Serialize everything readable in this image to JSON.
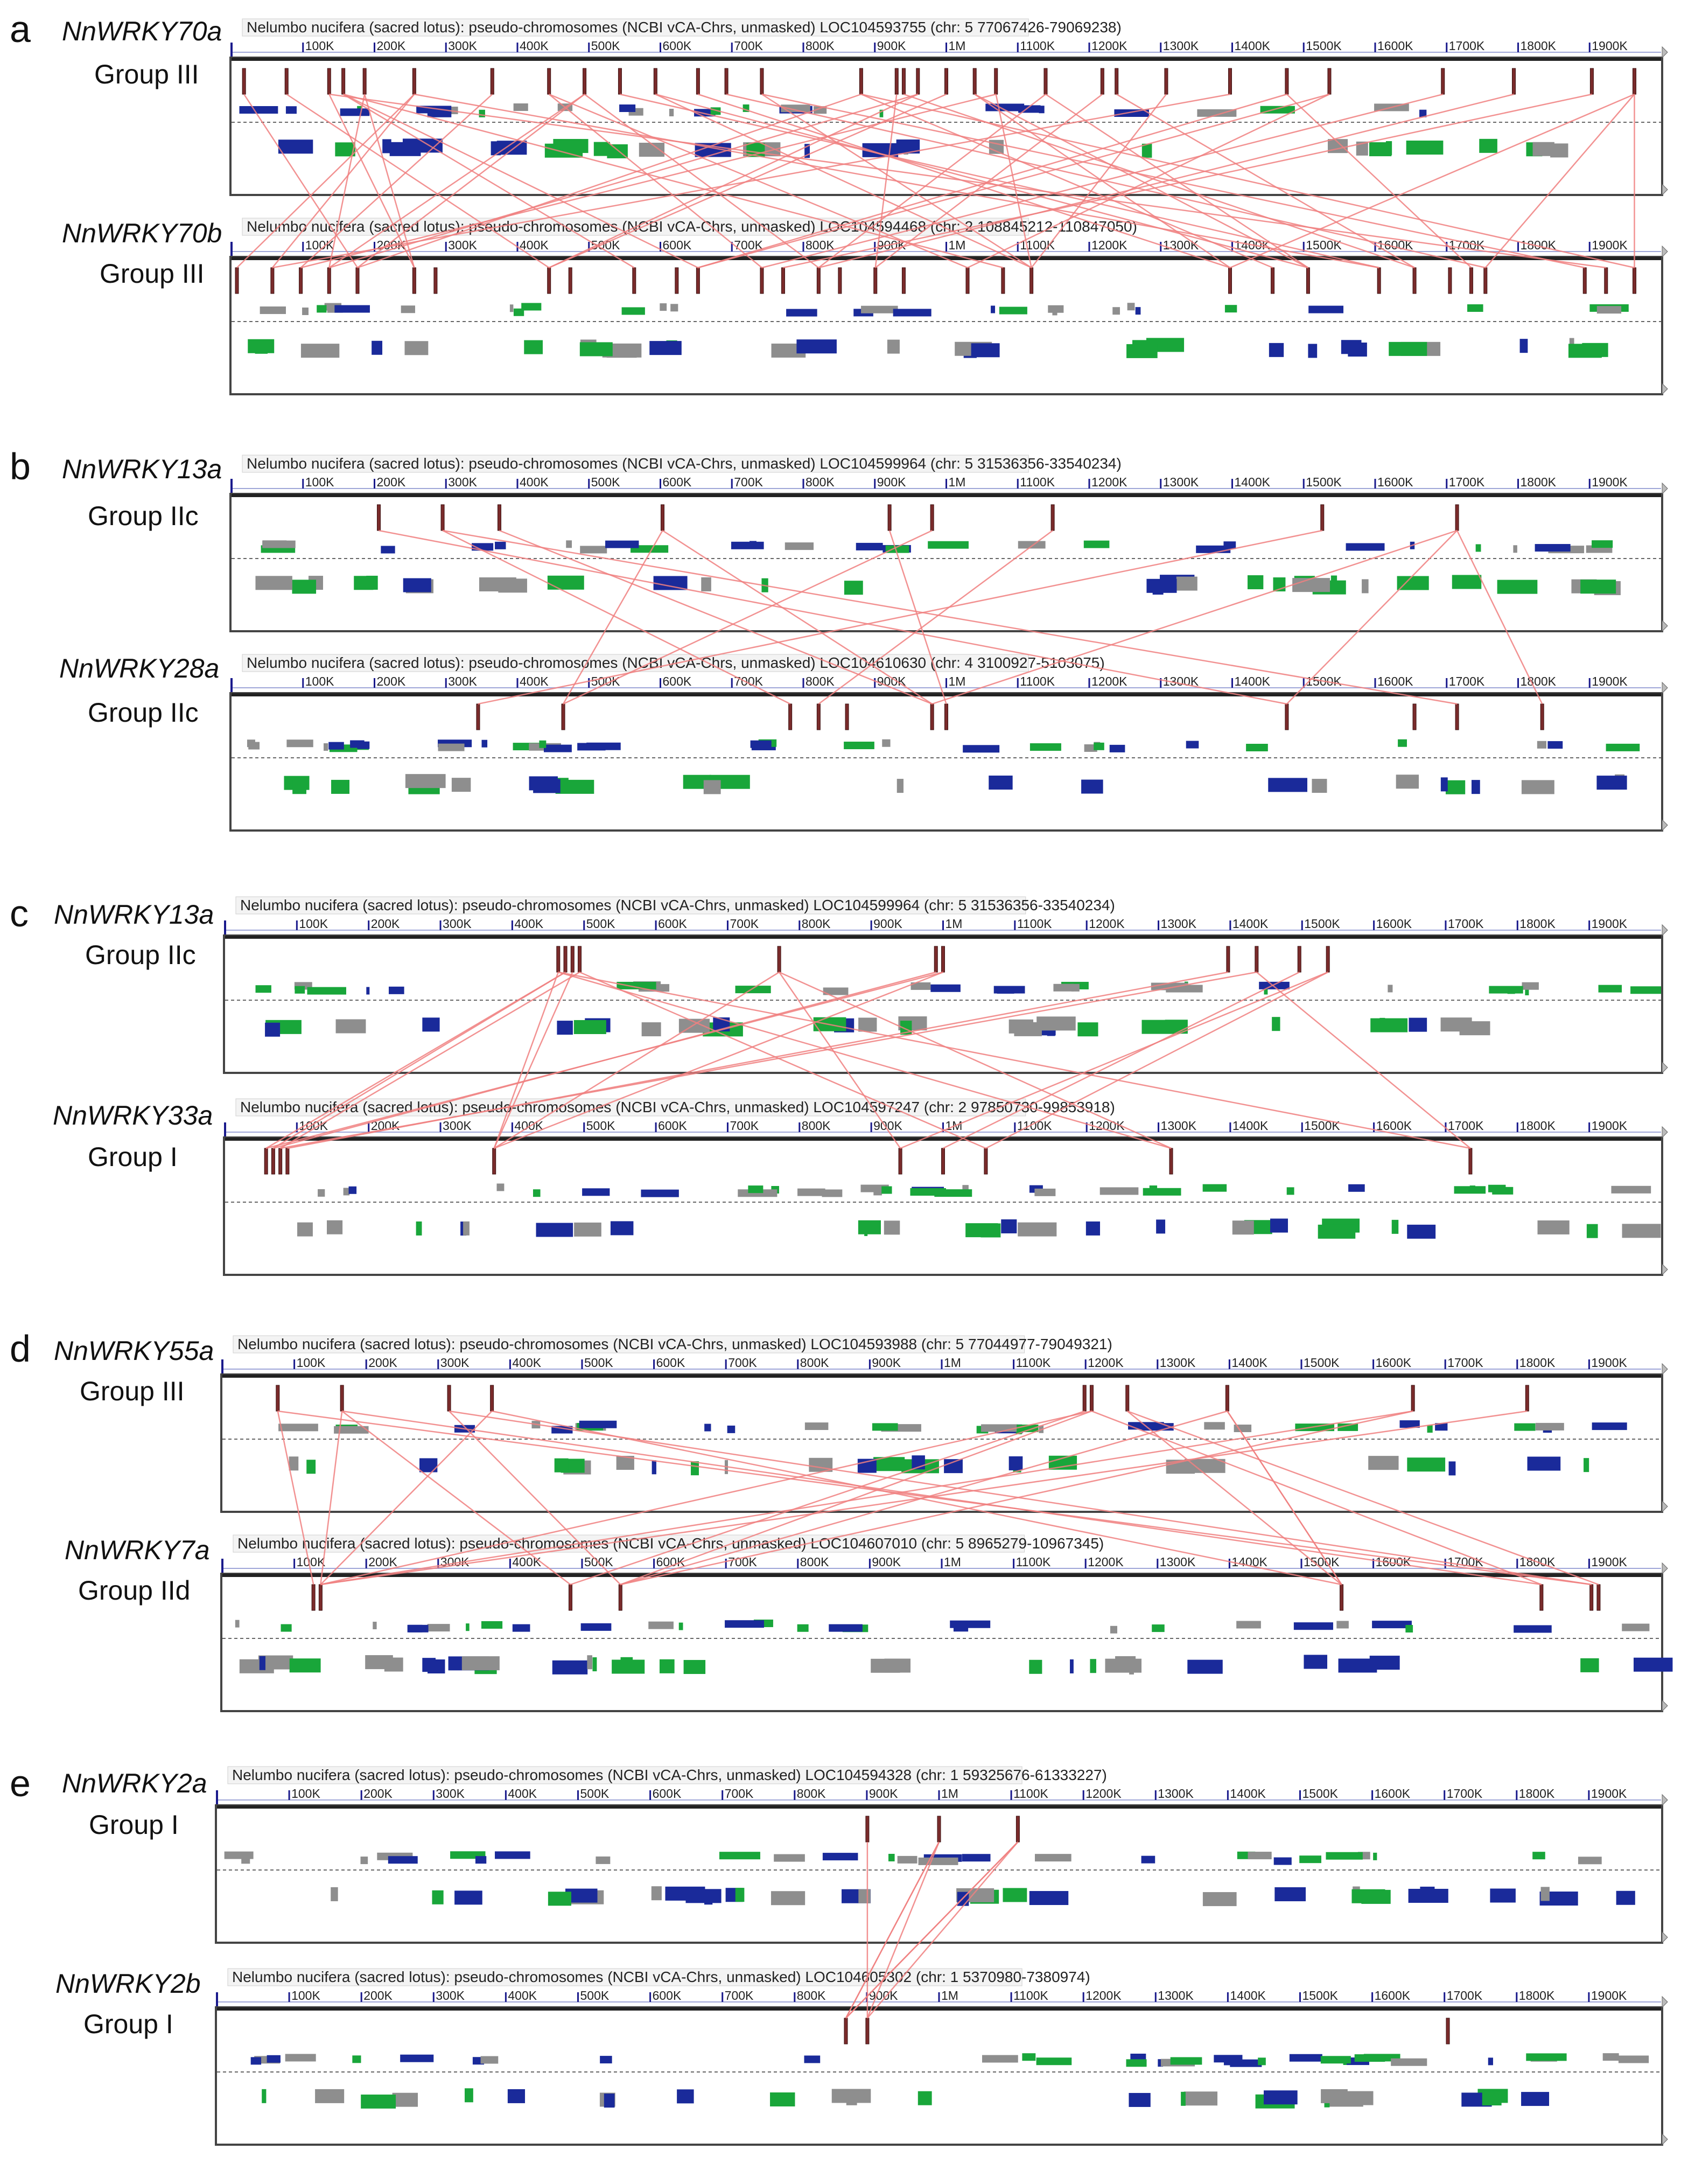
{
  "colors": {
    "link": "#f08080",
    "hit": "#7a2b2b",
    "gene_gray": "#8e8e8e",
    "gene_blue": "#1a2a9a",
    "gene_green": "#19a63a",
    "ruler": "#1a1a8c",
    "frame": "#444444"
  },
  "tick_labels": [
    "100K",
    "200K",
    "300K",
    "400K",
    "500K",
    "600K",
    "700K",
    "800K",
    "900K",
    "1M",
    "1100K",
    "1200K",
    "1300K",
    "1400K",
    "1500K",
    "1600K",
    "1700K",
    "1800K",
    "1900K"
  ],
  "panels": [
    {
      "label": "a",
      "tracks": [
        {
          "gene": "NnWRKY70a",
          "group": "Group III",
          "title": "Nelumbo nucifera (sacred lotus): pseudo-chromosomes (NCBI vCA-Chrs, unmasked) LOC104593755 (chr: 5 77067426-79069238)"
        },
        {
          "gene": "NnWRKY70b",
          "group": "Group III",
          "title": "Nelumbo nucifera (sacred lotus): pseudo-chromosomes (NCBI vCA-Chrs, unmasked) LOC104594468 (chr: 2 108845212-110847050)"
        }
      ]
    },
    {
      "label": "b",
      "tracks": [
        {
          "gene": "NnWRKY13a",
          "group": "Group IIc",
          "title": "Nelumbo nucifera (sacred lotus): pseudo-chromosomes (NCBI vCA-Chrs, unmasked) LOC104599964 (chr: 5 31536356-33540234)"
        },
        {
          "gene": "NnWRKY28a",
          "group": "Group IIc",
          "title": "Nelumbo nucifera (sacred lotus): pseudo-chromosomes (NCBI vCA-Chrs, unmasked) LOC104610630 (chr: 4 3100927-5103075)"
        }
      ]
    },
    {
      "label": "c",
      "tracks": [
        {
          "gene": "NnWRKY13a",
          "group": "Group IIc",
          "title": "Nelumbo nucifera (sacred lotus): pseudo-chromosomes (NCBI vCA-Chrs, unmasked) LOC104599964 (chr: 5 31536356-33540234)"
        },
        {
          "gene": "NnWRKY33a",
          "group": "Group I",
          "title": "Nelumbo nucifera (sacred lotus): pseudo-chromosomes (NCBI vCA-Chrs, unmasked) LOC104597247 (chr: 2 97850730-99853918)"
        }
      ]
    },
    {
      "label": "d",
      "tracks": [
        {
          "gene": "NnWRKY55a",
          "group": "Group III",
          "title": "Nelumbo nucifera (sacred lotus): pseudo-chromosomes (NCBI vCA-Chrs, unmasked) LOC104593988 (chr: 5 77044977-79049321)"
        },
        {
          "gene": "NnWRKY7a",
          "group": "Group IId",
          "title": "Nelumbo nucifera (sacred lotus): pseudo-chromosomes (NCBI vCA-Chrs, unmasked) LOC104607010 (chr: 5 8965279-10967345)"
        }
      ]
    },
    {
      "label": "e",
      "tracks": [
        {
          "gene": "NnWRKY2a",
          "group": "Group I",
          "title": "Nelumbo nucifera (sacred lotus): pseudo-chromosomes (NCBI vCA-Chrs, unmasked) LOC104594328 (chr: 1 59325676-61333227)"
        },
        {
          "gene": "NnWRKY2b",
          "group": "Group I",
          "title": "Nelumbo nucifera (sacred lotus): pseudo-chromosomes (NCBI vCA-Chrs, unmasked) LOC104605302 (chr: 1 5370980-7380974)"
        }
      ]
    }
  ]
}
